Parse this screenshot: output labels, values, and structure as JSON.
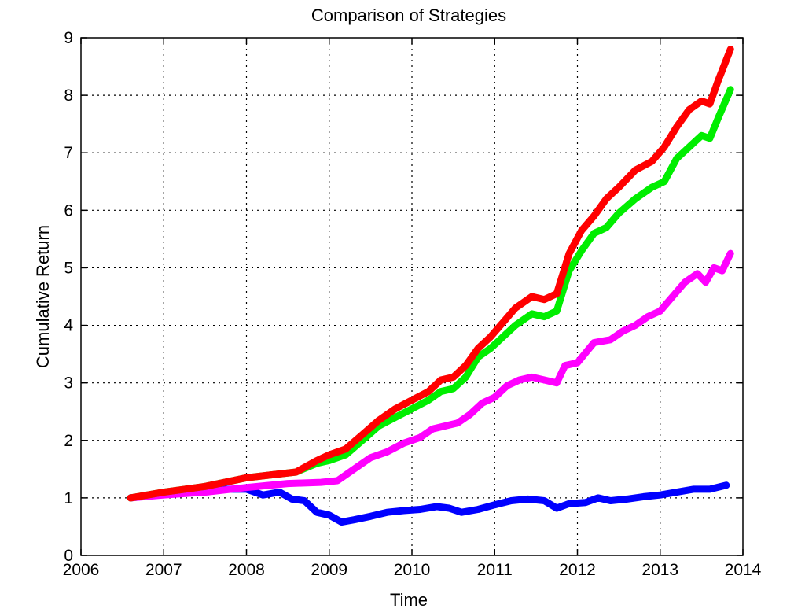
{
  "chart_data": {
    "type": "line",
    "title": "Comparison of Strategies",
    "xlabel": "Time",
    "ylabel": "Cumulative Return",
    "xlim": [
      2006,
      2014
    ],
    "ylim": [
      0,
      9
    ],
    "xticks": [
      2006,
      2007,
      2008,
      2009,
      2010,
      2011,
      2012,
      2013,
      2014
    ],
    "yticks": [
      0,
      1,
      2,
      3,
      4,
      5,
      6,
      7,
      8,
      9
    ],
    "grid": true,
    "series": [
      {
        "color": "#0000ff",
        "points": [
          [
            2006.6,
            1.0
          ],
          [
            2006.9,
            1.05
          ],
          [
            2007.3,
            1.1
          ],
          [
            2007.7,
            1.15
          ],
          [
            2008.0,
            1.15
          ],
          [
            2008.2,
            1.05
          ],
          [
            2008.4,
            1.1
          ],
          [
            2008.55,
            0.98
          ],
          [
            2008.7,
            0.95
          ],
          [
            2008.85,
            0.75
          ],
          [
            2009.0,
            0.7
          ],
          [
            2009.15,
            0.58
          ],
          [
            2009.3,
            0.62
          ],
          [
            2009.5,
            0.68
          ],
          [
            2009.7,
            0.75
          ],
          [
            2009.9,
            0.78
          ],
          [
            2010.1,
            0.8
          ],
          [
            2010.3,
            0.85
          ],
          [
            2010.45,
            0.82
          ],
          [
            2010.6,
            0.75
          ],
          [
            2010.8,
            0.8
          ],
          [
            2011.0,
            0.88
          ],
          [
            2011.2,
            0.95
          ],
          [
            2011.4,
            0.98
          ],
          [
            2011.6,
            0.95
          ],
          [
            2011.75,
            0.82
          ],
          [
            2011.9,
            0.9
          ],
          [
            2012.1,
            0.92
          ],
          [
            2012.25,
            1.0
          ],
          [
            2012.4,
            0.95
          ],
          [
            2012.6,
            0.98
          ],
          [
            2012.8,
            1.02
          ],
          [
            2013.0,
            1.05
          ],
          [
            2013.2,
            1.1
          ],
          [
            2013.4,
            1.15
          ],
          [
            2013.6,
            1.15
          ],
          [
            2013.8,
            1.22
          ]
        ]
      },
      {
        "color": "#ff00ff",
        "points": [
          [
            2006.6,
            1.0
          ],
          [
            2007.0,
            1.05
          ],
          [
            2007.5,
            1.1
          ],
          [
            2008.0,
            1.18
          ],
          [
            2008.5,
            1.25
          ],
          [
            2008.9,
            1.27
          ],
          [
            2009.1,
            1.3
          ],
          [
            2009.3,
            1.5
          ],
          [
            2009.5,
            1.7
          ],
          [
            2009.7,
            1.8
          ],
          [
            2009.9,
            1.95
          ],
          [
            2010.1,
            2.05
          ],
          [
            2010.25,
            2.2
          ],
          [
            2010.4,
            2.25
          ],
          [
            2010.55,
            2.3
          ],
          [
            2010.7,
            2.45
          ],
          [
            2010.85,
            2.65
          ],
          [
            2011.0,
            2.75
          ],
          [
            2011.15,
            2.95
          ],
          [
            2011.3,
            3.05
          ],
          [
            2011.45,
            3.1
          ],
          [
            2011.6,
            3.05
          ],
          [
            2011.75,
            3.0
          ],
          [
            2011.85,
            3.3
          ],
          [
            2012.0,
            3.35
          ],
          [
            2012.2,
            3.7
          ],
          [
            2012.4,
            3.75
          ],
          [
            2012.55,
            3.9
          ],
          [
            2012.7,
            4.0
          ],
          [
            2012.85,
            4.15
          ],
          [
            2013.0,
            4.25
          ],
          [
            2013.15,
            4.5
          ],
          [
            2013.3,
            4.75
          ],
          [
            2013.45,
            4.9
          ],
          [
            2013.55,
            4.75
          ],
          [
            2013.65,
            5.0
          ],
          [
            2013.75,
            4.95
          ],
          [
            2013.85,
            5.25
          ]
        ]
      },
      {
        "color": "#00ee00",
        "points": [
          [
            2006.6,
            1.0
          ],
          [
            2007.0,
            1.1
          ],
          [
            2007.5,
            1.2
          ],
          [
            2008.0,
            1.35
          ],
          [
            2008.3,
            1.4
          ],
          [
            2008.6,
            1.45
          ],
          [
            2008.85,
            1.6
          ],
          [
            2009.0,
            1.65
          ],
          [
            2009.2,
            1.75
          ],
          [
            2009.4,
            2.0
          ],
          [
            2009.6,
            2.25
          ],
          [
            2009.8,
            2.4
          ],
          [
            2010.0,
            2.55
          ],
          [
            2010.2,
            2.7
          ],
          [
            2010.35,
            2.85
          ],
          [
            2010.5,
            2.9
          ],
          [
            2010.65,
            3.1
          ],
          [
            2010.8,
            3.45
          ],
          [
            2010.95,
            3.6
          ],
          [
            2011.1,
            3.8
          ],
          [
            2011.25,
            4.0
          ],
          [
            2011.45,
            4.2
          ],
          [
            2011.6,
            4.15
          ],
          [
            2011.75,
            4.25
          ],
          [
            2011.9,
            4.95
          ],
          [
            2012.05,
            5.3
          ],
          [
            2012.2,
            5.6
          ],
          [
            2012.35,
            5.7
          ],
          [
            2012.5,
            5.95
          ],
          [
            2012.7,
            6.2
          ],
          [
            2012.9,
            6.4
          ],
          [
            2013.05,
            6.5
          ],
          [
            2013.2,
            6.9
          ],
          [
            2013.35,
            7.1
          ],
          [
            2013.5,
            7.3
          ],
          [
            2013.6,
            7.25
          ],
          [
            2013.7,
            7.6
          ],
          [
            2013.85,
            8.1
          ]
        ]
      },
      {
        "color": "#ff0000",
        "points": [
          [
            2006.6,
            1.0
          ],
          [
            2007.0,
            1.1
          ],
          [
            2007.5,
            1.2
          ],
          [
            2008.0,
            1.35
          ],
          [
            2008.3,
            1.4
          ],
          [
            2008.6,
            1.45
          ],
          [
            2008.85,
            1.65
          ],
          [
            2009.0,
            1.75
          ],
          [
            2009.2,
            1.85
          ],
          [
            2009.4,
            2.1
          ],
          [
            2009.6,
            2.35
          ],
          [
            2009.8,
            2.55
          ],
          [
            2010.0,
            2.7
          ],
          [
            2010.2,
            2.85
          ],
          [
            2010.35,
            3.05
          ],
          [
            2010.5,
            3.1
          ],
          [
            2010.65,
            3.3
          ],
          [
            2010.8,
            3.6
          ],
          [
            2010.95,
            3.8
          ],
          [
            2011.1,
            4.05
          ],
          [
            2011.25,
            4.3
          ],
          [
            2011.45,
            4.5
          ],
          [
            2011.6,
            4.45
          ],
          [
            2011.75,
            4.55
          ],
          [
            2011.9,
            5.25
          ],
          [
            2012.05,
            5.65
          ],
          [
            2012.2,
            5.9
          ],
          [
            2012.35,
            6.2
          ],
          [
            2012.5,
            6.4
          ],
          [
            2012.7,
            6.7
          ],
          [
            2012.9,
            6.85
          ],
          [
            2013.05,
            7.1
          ],
          [
            2013.2,
            7.45
          ],
          [
            2013.35,
            7.75
          ],
          [
            2013.5,
            7.9
          ],
          [
            2013.6,
            7.85
          ],
          [
            2013.7,
            8.25
          ],
          [
            2013.85,
            8.8
          ]
        ]
      }
    ]
  }
}
